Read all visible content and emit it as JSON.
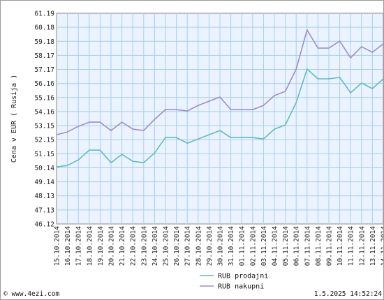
{
  "chart_data": {
    "type": "line",
    "ylabel": "Cena v EUR ( Rusija )",
    "ylim": [
      46.12,
      61.19
    ],
    "yticks": [
      "61.19",
      "60.18",
      "59.18",
      "58.17",
      "57.17",
      "56.16",
      "55.16",
      "54.16",
      "53.15",
      "52.15",
      "51.15",
      "50.14",
      "49.14",
      "48.13",
      "47.13",
      "46.12"
    ],
    "x": [
      "15.10.2014",
      "16.10.2014",
      "17.10.2014",
      "18.10.2014",
      "19.10.2014",
      "20.10.2014",
      "21.10.2014",
      "22.10.2014",
      "23.10.2014",
      "24.10.2014",
      "25.10.2014",
      "26.10.2014",
      "27.10.2014",
      "28.10.2014",
      "29.10.2014",
      "30.10.2014",
      "31.10.2014",
      "01.11.2014",
      "02.11.2014",
      "03.11.2014",
      "04.11.2014",
      "05.11.2014",
      "06.11.2014",
      "07.11.2014",
      "08.11.2014",
      "09.11.2014",
      "10.11.2014",
      "11.11.2014",
      "12.11.2014",
      "13.11.2014",
      "14.11.2014"
    ],
    "series": [
      {
        "name": "RUB prodajni",
        "color": "#5fbcbc",
        "values": [
          50.2,
          50.3,
          50.7,
          51.4,
          51.4,
          50.5,
          51.1,
          50.6,
          50.5,
          51.2,
          52.3,
          52.3,
          51.9,
          52.2,
          52.5,
          52.8,
          52.3,
          52.3,
          52.3,
          52.2,
          52.9,
          53.2,
          54.8,
          57.2,
          56.5,
          56.5,
          56.6,
          55.5,
          56.2,
          55.8,
          56.5
        ]
      },
      {
        "name": "RUB nakupni",
        "color": "#a08cc8",
        "values": [
          52.5,
          52.7,
          53.1,
          53.4,
          53.4,
          52.8,
          53.4,
          52.9,
          52.8,
          53.6,
          54.3,
          54.3,
          54.2,
          54.6,
          54.9,
          55.2,
          54.3,
          54.3,
          54.3,
          54.6,
          55.3,
          55.6,
          57.2,
          60.0,
          58.7,
          58.7,
          59.2,
          58.0,
          58.8,
          58.4,
          59.0
        ]
      }
    ],
    "grid": true,
    "legend_position": "bottom"
  },
  "footer": {
    "source": "© www.4ezi.com",
    "timestamp": "1.5.2025 14:52:24"
  }
}
